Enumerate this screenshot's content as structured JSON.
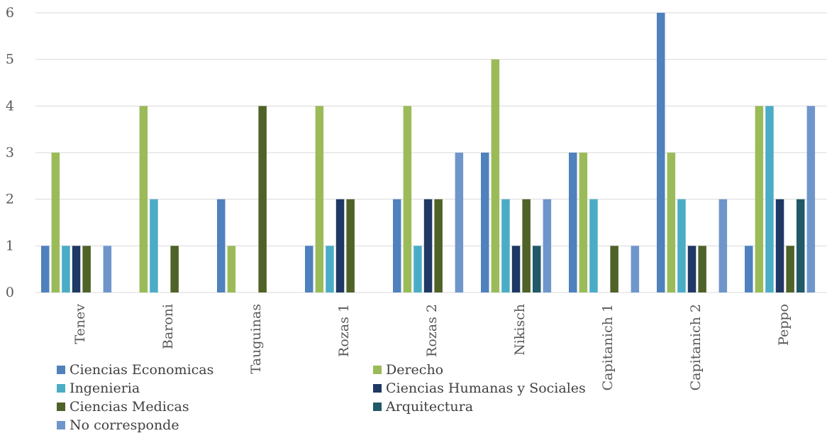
{
  "chart_data": {
    "type": "bar",
    "categories": [
      "Tenev",
      "Baroni",
      "Tauguinas",
      "Rozas 1",
      "Rozas 2",
      "Nikisch",
      "Capitanich 1",
      "Capitanich 2",
      "Peppo"
    ],
    "series": [
      {
        "name": "Ciencias Economicas",
        "color": "#4f81bd",
        "values": [
          1,
          0,
          2,
          1,
          2,
          3,
          3,
          6,
          1
        ]
      },
      {
        "name": "Derecho",
        "color": "#9bbb59",
        "values": [
          3,
          4,
          1,
          4,
          4,
          5,
          3,
          3,
          4
        ]
      },
      {
        "name": "Ingenieria",
        "color": "#4bacc6",
        "values": [
          1,
          2,
          0,
          1,
          1,
          2,
          2,
          2,
          4
        ]
      },
      {
        "name": "Ciencias Humanas y Sociales",
        "color": "#1f3864",
        "values": [
          1,
          0,
          0,
          2,
          2,
          1,
          0,
          1,
          2
        ]
      },
      {
        "name": "Ciencias Medicas",
        "color": "#4f6228",
        "values": [
          1,
          1,
          4,
          2,
          2,
          2,
          1,
          1,
          1
        ]
      },
      {
        "name": "Arquitectura",
        "color": "#215968",
        "values": [
          0,
          0,
          0,
          0,
          0,
          1,
          0,
          0,
          2
        ]
      },
      {
        "name": "No corresponde",
        "color": "#6f96cb",
        "values": [
          1,
          0,
          0,
          0,
          3,
          2,
          1,
          2,
          4
        ]
      }
    ],
    "ylim": [
      0,
      6
    ],
    "yticks": [
      0,
      1,
      2,
      3,
      4,
      5,
      6
    ],
    "grid": true,
    "legend_position": "bottom-left"
  }
}
